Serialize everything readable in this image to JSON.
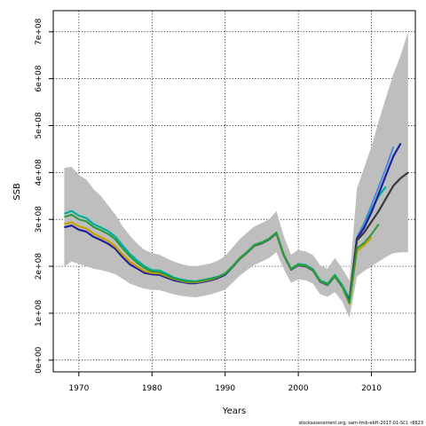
{
  "chart_data": {
    "type": "line",
    "title": "",
    "xlabel": "Years",
    "ylabel": "SSB",
    "xlim": [
      1966.5,
      2016
    ],
    "ylim": [
      -25000000,
      745000000
    ],
    "x_ticks": [
      1970,
      1980,
      1990,
      2000,
      2010
    ],
    "x_tick_labels": [
      "1970",
      "1980",
      "1990",
      "2000",
      "2010"
    ],
    "y_ticks": [
      0,
      100000000,
      200000000,
      300000000,
      400000000,
      500000000,
      600000000,
      700000000
    ],
    "y_tick_labels": [
      "0e+00",
      "1e+08",
      "2e+08",
      "3e+08",
      "4e+08",
      "5e+08",
      "6e+08",
      "7e+08"
    ],
    "grid": true,
    "footer_text": "stockassessment.org, sam-tmb-ebft-2017-01-SCI, r8623",
    "confidence_band": {
      "fill": "#bebebe",
      "x": [
        1968,
        1969,
        1970,
        1971,
        1972,
        1973,
        1974,
        1975,
        1976,
        1977,
        1978,
        1979,
        1980,
        1981,
        1982,
        1983,
        1984,
        1985,
        1986,
        1987,
        1988,
        1989,
        1990,
        1991,
        1992,
        1993,
        1994,
        1995,
        1996,
        1997,
        1998,
        1999,
        2000,
        2001,
        2002,
        2003,
        2004,
        2005,
        2006,
        2007,
        2008,
        2009,
        2010,
        2011,
        2012,
        2013,
        2014,
        2015
      ],
      "upper": [
        410000000,
        412000000,
        395000000,
        385000000,
        365000000,
        350000000,
        330000000,
        310000000,
        285000000,
        265000000,
        248000000,
        235000000,
        228000000,
        225000000,
        217000000,
        210000000,
        205000000,
        201000000,
        200000000,
        203000000,
        206000000,
        212000000,
        222000000,
        240000000,
        258000000,
        272000000,
        285000000,
        292000000,
        300000000,
        318000000,
        265000000,
        225000000,
        235000000,
        232000000,
        224000000,
        202000000,
        195000000,
        218000000,
        195000000,
        170000000,
        365000000,
        410000000,
        455000000,
        510000000,
        560000000,
        610000000,
        650000000,
        700000000
      ],
      "lower": [
        200000000,
        210000000,
        205000000,
        200000000,
        195000000,
        192000000,
        188000000,
        183000000,
        173000000,
        163000000,
        157000000,
        152000000,
        150000000,
        149000000,
        145000000,
        140000000,
        137000000,
        135000000,
        134000000,
        137000000,
        140000000,
        145000000,
        150000000,
        165000000,
        180000000,
        192000000,
        203000000,
        210000000,
        218000000,
        230000000,
        195000000,
        165000000,
        172000000,
        170000000,
        163000000,
        140000000,
        135000000,
        145000000,
        125000000,
        90000000,
        178000000,
        190000000,
        200000000,
        210000000,
        220000000,
        228000000,
        230000000,
        230000000
      ]
    },
    "series": [
      {
        "color": "#00b0a0",
        "width": 2.2,
        "x": [
          1968,
          1969,
          1970,
          1971,
          1972,
          1973,
          1974,
          1975,
          1976,
          1977,
          1978,
          1979,
          1980,
          1981,
          1982,
          1983,
          1984,
          1985,
          1986,
          1987,
          1988,
          1989,
          1990,
          1991,
          1992,
          1993,
          1994,
          1995,
          1996,
          1997,
          1998,
          1999,
          2000,
          2001,
          2002,
          2003,
          2004,
          2005,
          2006,
          2007,
          2008,
          2009,
          2010,
          2011,
          2012
        ],
        "values": [
          312000000,
          318000000,
          308000000,
          303000000,
          290000000,
          283000000,
          275000000,
          263000000,
          244000000,
          226000000,
          212000000,
          200000000,
          192000000,
          191000000,
          184000000,
          176000000,
          172000000,
          169000000,
          168000000,
          171000000,
          174000000,
          178000000,
          185000000,
          200000000,
          218000000,
          231000000,
          246000000,
          251000000,
          259000000,
          272000000,
          226000000,
          195000000,
          205000000,
          203000000,
          194000000,
          170000000,
          163000000,
          182000000,
          160000000,
          130000000,
          260000000,
          290000000,
          320000000,
          350000000,
          370000000
        ]
      },
      {
        "color": "#4488dd",
        "width": 1.8,
        "x": [
          2007,
          2008,
          2009,
          2010,
          2011,
          2012,
          2013
        ],
        "values": [
          130000000,
          262000000,
          292000000,
          330000000,
          370000000,
          410000000,
          455000000
        ]
      },
      {
        "color": "#20209a",
        "width": 2.2,
        "x": [
          1968,
          1969,
          1970,
          1971,
          1972,
          1973,
          1974,
          1975,
          1976,
          1977,
          1978,
          1979,
          1980,
          1981,
          1982,
          1983,
          1984,
          1985,
          1986,
          1987,
          1988,
          1989,
          1990,
          1991,
          1992,
          1993,
          1994,
          1995,
          1996,
          1997,
          1998,
          1999,
          2000,
          2001,
          2002,
          2003,
          2004,
          2005,
          2006,
          2007,
          2008,
          2009,
          2010,
          2011,
          2012,
          2013,
          2014
        ],
        "values": [
          283000000,
          287000000,
          278000000,
          274000000,
          263000000,
          256000000,
          248000000,
          237000000,
          219000000,
          204000000,
          195000000,
          186000000,
          183000000,
          182000000,
          176000000,
          170000000,
          167000000,
          164000000,
          164000000,
          167000000,
          170000000,
          175000000,
          182000000,
          198000000,
          216000000,
          229000000,
          244000000,
          249000000,
          257000000,
          270000000,
          224000000,
          193000000,
          202000000,
          200000000,
          191000000,
          167000000,
          160000000,
          179000000,
          156000000,
          125000000,
          258000000,
          282000000,
          315000000,
          355000000,
          395000000,
          435000000,
          462000000
        ]
      },
      {
        "color": "#3a3a3a",
        "width": 2.2,
        "x": [
          2007,
          2008,
          2009,
          2010,
          2011,
          2012,
          2013,
          2014,
          2015
        ],
        "values": [
          130000000,
          255000000,
          272000000,
          295000000,
          318000000,
          345000000,
          372000000,
          388000000,
          400000000
        ]
      },
      {
        "color": "#c8a000",
        "width": 2.2,
        "x": [
          1968,
          1969,
          1970,
          1971,
          1972,
          1973,
          1974,
          1975,
          1976,
          1977,
          1978,
          1979,
          1980,
          1981,
          1982,
          1983,
          1984,
          1985,
          1986,
          1987,
          1988,
          1989,
          1990,
          1991,
          1992,
          1993,
          1994,
          1995,
          1996,
          1997,
          1998,
          1999,
          2000,
          2001,
          2002,
          2003,
          2004,
          2005,
          2006,
          2007,
          2008,
          2009,
          2010
        ],
        "values": [
          290000000,
          294000000,
          285000000,
          281000000,
          270000000,
          262000000,
          254000000,
          242000000,
          225000000,
          210000000,
          199000000,
          190000000,
          186000000,
          185000000,
          179000000,
          173000000,
          169000000,
          166000000,
          166000000,
          169000000,
          172000000,
          177000000,
          184000000,
          199000000,
          217000000,
          230000000,
          245000000,
          250000000,
          258000000,
          271000000,
          225000000,
          194000000,
          203000000,
          201000000,
          192000000,
          168000000,
          161000000,
          180000000,
          157000000,
          120000000,
          232000000,
          245000000,
          262000000
        ]
      },
      {
        "color": "#2a9a3a",
        "width": 2.0,
        "x": [
          1968,
          1969,
          1970,
          1971,
          1972,
          1973,
          1974,
          1975,
          1976,
          1977,
          1978,
          1979,
          1980,
          1981,
          1982,
          1983,
          1984,
          1985,
          1986,
          1987,
          1988,
          1989,
          1990,
          1991,
          1992,
          1993,
          1994,
          1995,
          1996,
          1997,
          1998,
          1999,
          2000,
          2001,
          2002,
          2003,
          2004,
          2005,
          2006,
          2007,
          2008,
          2009,
          2010,
          2011
        ],
        "values": [
          305000000,
          310000000,
          300000000,
          296000000,
          284000000,
          277000000,
          269000000,
          257000000,
          238000000,
          221000000,
          207000000,
          196000000,
          189000000,
          188000000,
          181000000,
          174000000,
          170000000,
          167000000,
          167000000,
          170000000,
          173000000,
          177000000,
          184000000,
          199000000,
          217000000,
          230000000,
          245000000,
          250000000,
          258000000,
          271000000,
          225000000,
          194000000,
          203000000,
          201000000,
          192000000,
          168000000,
          161000000,
          180000000,
          157000000,
          122000000,
          238000000,
          250000000,
          268000000,
          290000000
        ]
      }
    ]
  }
}
